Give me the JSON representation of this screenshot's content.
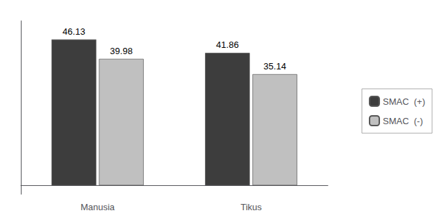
{
  "chart_data": {
    "type": "bar",
    "categories": [
      "Manusia",
      "Tikus"
    ],
    "series": [
      {
        "name": "SMAC  (+)",
        "color": "#3d3d3d",
        "values": [
          46.13,
          41.86
        ]
      },
      {
        "name": "SMAC  (-)",
        "color": "#c0c0c0",
        "values": [
          39.98,
          35.14
        ]
      }
    ],
    "ylim": [
      -2.8,
      52
    ],
    "grid": false,
    "legend": "right",
    "data_labels": true,
    "tick_labels": "x"
  }
}
